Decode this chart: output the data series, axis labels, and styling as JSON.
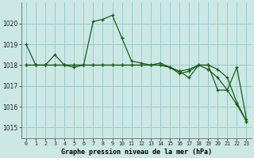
{
  "title": "Graphe pression niveau de la mer (hPa)",
  "background_color": "#cce8e4",
  "grid_color": "#99cccc",
  "line_color": "#1a5c1a",
  "xlim": [
    -0.5,
    23.5
  ],
  "ylim": [
    1014.5,
    1021.0
  ],
  "yticks": [
    1015,
    1016,
    1017,
    1018,
    1019,
    1020
  ],
  "xticks": [
    0,
    1,
    2,
    3,
    4,
    5,
    6,
    7,
    8,
    9,
    10,
    11,
    12,
    13,
    14,
    15,
    16,
    17,
    18,
    19,
    20,
    21,
    22,
    23
  ],
  "s1y": [
    1019.0,
    1018.0,
    1018.0,
    1018.5,
    1018.0,
    1017.9,
    1018.0,
    1020.1,
    1020.2,
    1020.4,
    1019.3,
    1018.2,
    1018.1,
    1018.0,
    1018.1,
    1017.9,
    1017.6,
    1017.7,
    1018.0,
    1018.0,
    1016.8,
    1016.8,
    1017.9,
    1015.4
  ],
  "s2y": [
    1018.0,
    1018.0,
    1018.0,
    1018.0,
    1018.0,
    1018.0,
    1018.0,
    1018.0,
    1018.0,
    1018.0,
    1018.0,
    1018.0,
    1018.0,
    1018.0,
    1018.0,
    1017.9,
    1017.7,
    1017.8,
    1018.0,
    1018.0,
    1017.8,
    1017.4,
    1016.2,
    1015.3
  ],
  "s3y": [
    1018.0,
    1018.0,
    1018.0,
    1018.0,
    1018.0,
    1018.0,
    1018.0,
    1018.0,
    1018.0,
    1018.0,
    1018.0,
    1018.0,
    1018.0,
    1018.0,
    1018.0,
    1017.9,
    1017.7,
    1017.4,
    1018.0,
    1017.8,
    1017.4,
    1016.8,
    1016.1,
    1015.3
  ]
}
